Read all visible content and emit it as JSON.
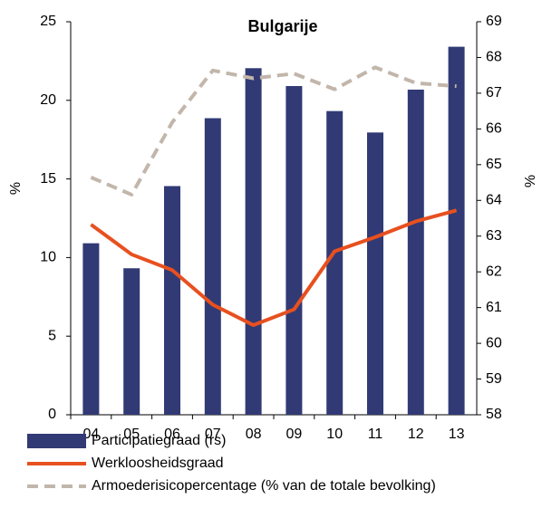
{
  "chart_data": {
    "type": "bar-line",
    "title": "Bulgarije",
    "y_label": "%",
    "y2_label": "%",
    "categories": [
      "04",
      "05",
      "06",
      "07",
      "08",
      "09",
      "10",
      "11",
      "12",
      "13"
    ],
    "series": [
      {
        "name": "Participatiegraad (rs)",
        "type": "bar",
        "axis": "y2",
        "color": "#313a74",
        "values": [
          62.8,
          62.1,
          64.4,
          66.3,
          67.7,
          67.2,
          66.5,
          65.9,
          67.1,
          68.3
        ]
      },
      {
        "name": "Werkloosheidsgraad",
        "type": "line",
        "axis": "y",
        "color": "#e8501f",
        "values": [
          12.1,
          10.2,
          9.2,
          7.0,
          5.7,
          6.7,
          10.4,
          11.3,
          12.3,
          13.0
        ]
      },
      {
        "name": "Armoederisicopercentage (%  van de totale bevolking)",
        "type": "dashed-line",
        "axis": "y",
        "color": "#c2b6ab",
        "values": [
          15.1,
          14.0,
          18.6,
          21.9,
          21.4,
          21.7,
          20.7,
          22.1,
          21.1,
          20.9
        ]
      }
    ],
    "ylim": [
      0,
      25
    ],
    "yticks": [
      0,
      5,
      10,
      15,
      20,
      25
    ],
    "y2lim": [
      58,
      69
    ],
    "y2ticks": [
      58,
      59,
      60,
      61,
      62,
      63,
      64,
      65,
      66,
      67,
      68,
      69
    ],
    "grid": false
  }
}
